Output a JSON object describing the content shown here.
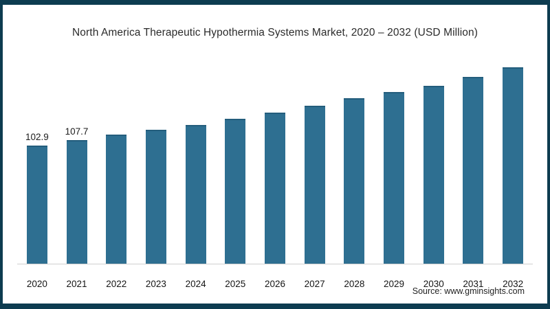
{
  "title": "North America Therapeutic Hypothermia Systems Market, 2020 – 2032 (USD Million)",
  "source": "Source: www.gminsights.com",
  "colors": {
    "bar": "#2e6f91",
    "bar_top": "#235d7c",
    "frame_border": "#0d3c50",
    "axis_line": "#cfcfcf"
  },
  "chart_data": {
    "type": "bar",
    "title": "North America Therapeutic Hypothermia Systems Market, 2020 – 2032 (USD Million)",
    "xlabel": "",
    "ylabel": "",
    "unit": "USD Million",
    "ylim": [
      0,
      175
    ],
    "grid": false,
    "legend": false,
    "bar_color": "#2e6f91",
    "categories": [
      "2020",
      "2021",
      "2022",
      "2023",
      "2024",
      "2025",
      "2026",
      "2027",
      "2028",
      "2029",
      "2030",
      "2031",
      "2032"
    ],
    "values": [
      102.9,
      107.7,
      112.8,
      116.6,
      120.8,
      126.2,
      131.7,
      138.1,
      144.3,
      150.0,
      155.3,
      163.2,
      171.2
    ],
    "data_labels": [
      "102.9",
      "107.7",
      "",
      "",
      "",
      "",
      "",
      "",
      "",
      "",
      "",
      "",
      ""
    ]
  }
}
